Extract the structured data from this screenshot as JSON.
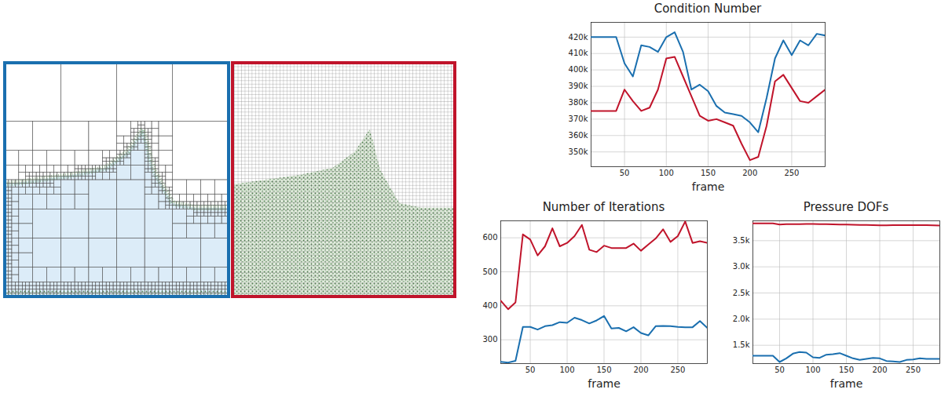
{
  "chart_data": [
    {
      "type": "line",
      "title": "Condition Number",
      "x_label": "frame",
      "x": [
        10,
        20,
        30,
        40,
        50,
        60,
        70,
        80,
        90,
        100,
        110,
        120,
        130,
        140,
        150,
        160,
        170,
        180,
        190,
        200,
        210,
        220,
        230,
        240,
        250,
        260,
        270,
        280,
        290
      ],
      "xlim": [
        10,
        290
      ],
      "xticks": [
        50,
        100,
        150,
        200,
        250
      ],
      "ylim": [
        341000,
        429000
      ],
      "yticks": [
        {
          "value": 350000,
          "label": "350k"
        },
        {
          "value": 360000,
          "label": "360k"
        },
        {
          "value": 370000,
          "label": "370k"
        },
        {
          "value": 380000,
          "label": "380k"
        },
        {
          "value": 390000,
          "label": "390k"
        },
        {
          "value": 400000,
          "label": "400k"
        },
        {
          "value": 410000,
          "label": "410k"
        },
        {
          "value": 420000,
          "label": "420k"
        }
      ],
      "grid": true,
      "series": [
        {
          "color": "#1a6faf",
          "values": [
            420000,
            420000,
            420000,
            420000,
            404000,
            396000,
            415000,
            414000,
            411000,
            420000,
            423000,
            411000,
            388000,
            391000,
            387000,
            378000,
            374000,
            373000,
            372000,
            368000,
            362000,
            383000,
            407000,
            418000,
            409000,
            418000,
            415000,
            422000,
            421000
          ]
        },
        {
          "color": "#c0142b",
          "values": [
            375000,
            375000,
            375000,
            375000,
            388000,
            381000,
            375000,
            377000,
            388000,
            407000,
            408000,
            396000,
            384000,
            372000,
            369000,
            370000,
            368000,
            366000,
            355000,
            345000,
            347000,
            366000,
            393000,
            397000,
            389000,
            381000,
            380000,
            384000,
            388000
          ]
        }
      ]
    },
    {
      "type": "line",
      "title": "Number of Iterations",
      "x_label": "frame",
      "x": [
        10,
        20,
        30,
        40,
        50,
        60,
        70,
        80,
        90,
        100,
        110,
        120,
        130,
        140,
        150,
        160,
        170,
        180,
        190,
        200,
        210,
        220,
        230,
        240,
        250,
        260,
        270,
        280,
        290
      ],
      "xlim": [
        10,
        290
      ],
      "xticks": [
        50,
        100,
        150,
        200,
        250
      ],
      "ylim": [
        230,
        650
      ],
      "yticks": [
        300,
        400,
        500,
        600
      ],
      "grid": true,
      "series": [
        {
          "color": "#c0142b",
          "values": [
            415,
            390,
            410,
            610,
            595,
            548,
            575,
            628,
            575,
            585,
            605,
            638,
            565,
            558,
            577,
            570,
            570,
            570,
            583,
            562,
            580,
            598,
            625,
            588,
            605,
            648,
            585,
            590,
            585
          ]
        },
        {
          "color": "#1a6faf",
          "values": [
            235,
            233,
            238,
            338,
            338,
            330,
            340,
            343,
            352,
            350,
            365,
            358,
            348,
            357,
            370,
            333,
            335,
            325,
            337,
            320,
            313,
            340,
            341,
            340,
            338,
            337,
            337,
            355,
            335
          ]
        }
      ]
    },
    {
      "type": "line",
      "title": "Pressure DOFs",
      "x_label": "frame",
      "x": [
        10,
        20,
        30,
        40,
        50,
        60,
        70,
        80,
        90,
        100,
        110,
        120,
        130,
        140,
        150,
        160,
        170,
        180,
        190,
        200,
        210,
        220,
        230,
        240,
        250,
        260,
        270,
        280,
        290
      ],
      "xlim": [
        10,
        290
      ],
      "xticks": [
        50,
        100,
        150,
        200,
        250
      ],
      "ylim": [
        1150,
        3880
      ],
      "yticks": [
        {
          "value": 1500,
          "label": "1.5k"
        },
        {
          "value": 2000,
          "label": "2.0k"
        },
        {
          "value": 2500,
          "label": "2.5k"
        },
        {
          "value": 3000,
          "label": "3.0k"
        },
        {
          "value": 3500,
          "label": "3.5k"
        }
      ],
      "grid": true,
      "series": [
        {
          "color": "#c0142b",
          "values": [
            3830,
            3830,
            3830,
            3830,
            3810,
            3815,
            3815,
            3815,
            3820,
            3820,
            3815,
            3815,
            3812,
            3810,
            3808,
            3805,
            3800,
            3800,
            3798,
            3795,
            3795,
            3797,
            3797,
            3797,
            3796,
            3796,
            3797,
            3795,
            3790
          ]
        },
        {
          "color": "#1a6faf",
          "values": [
            1300,
            1300,
            1300,
            1300,
            1180,
            1250,
            1340,
            1370,
            1360,
            1270,
            1260,
            1320,
            1330,
            1350,
            1300,
            1250,
            1220,
            1240,
            1260,
            1250,
            1200,
            1190,
            1180,
            1220,
            1230,
            1250,
            1240,
            1240,
            1240
          ]
        }
      ]
    }
  ]
}
